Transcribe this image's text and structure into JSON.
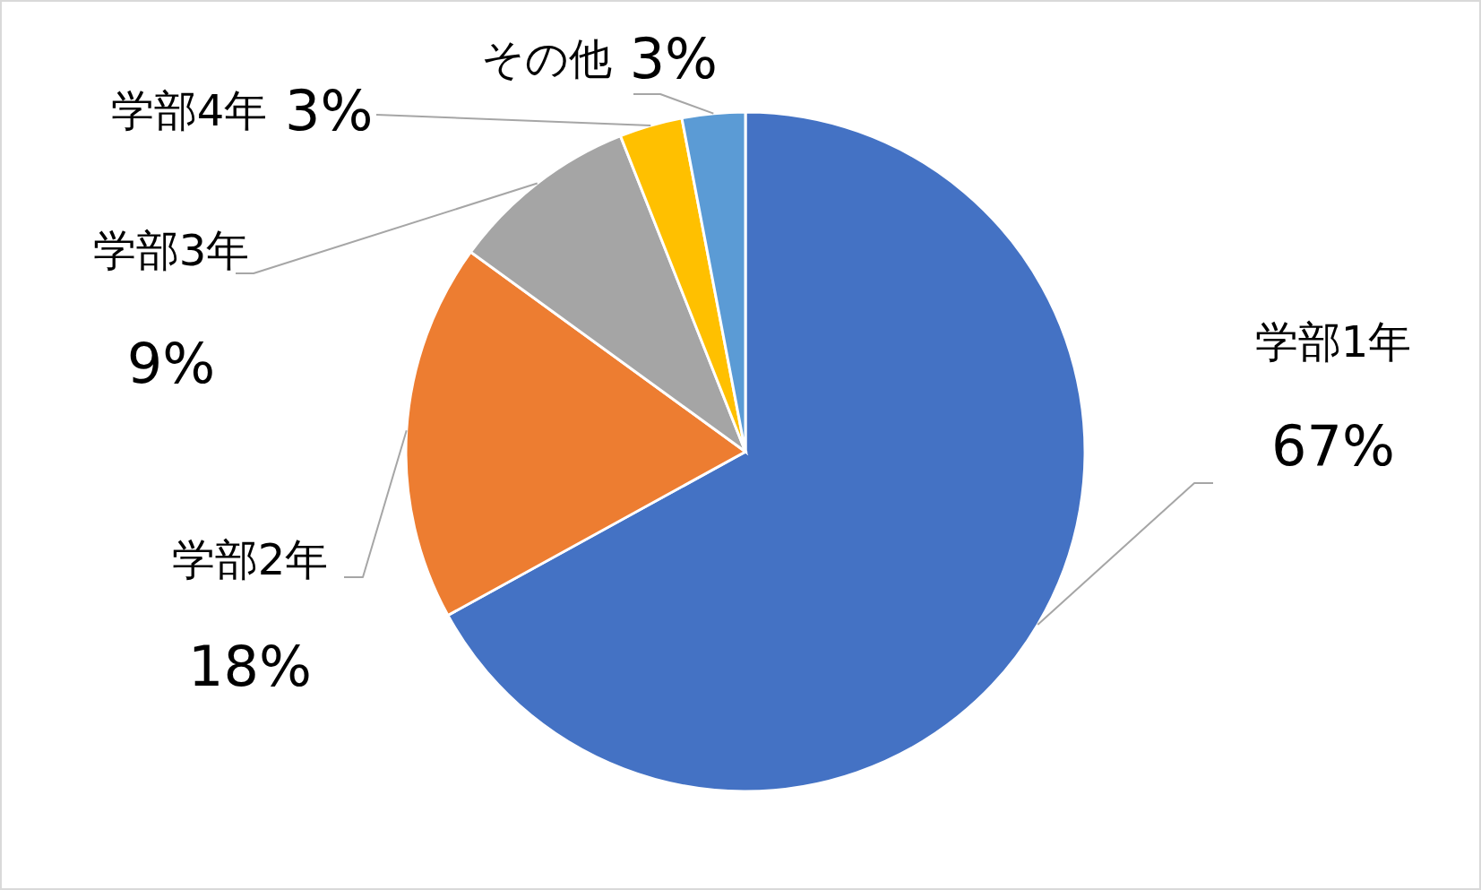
{
  "chart_data": {
    "type": "pie",
    "categories": [
      "学部1年",
      "学部2年",
      "学部3年",
      "学部4年",
      "その他"
    ],
    "values": [
      67,
      18,
      9,
      3,
      3
    ],
    "colors": [
      "#4472c4",
      "#ed7d31",
      "#a5a5a5",
      "#ffc000",
      "#5b9bd5"
    ],
    "value_labels": [
      "67%",
      "18%",
      "9%",
      "3%",
      "3%"
    ]
  }
}
